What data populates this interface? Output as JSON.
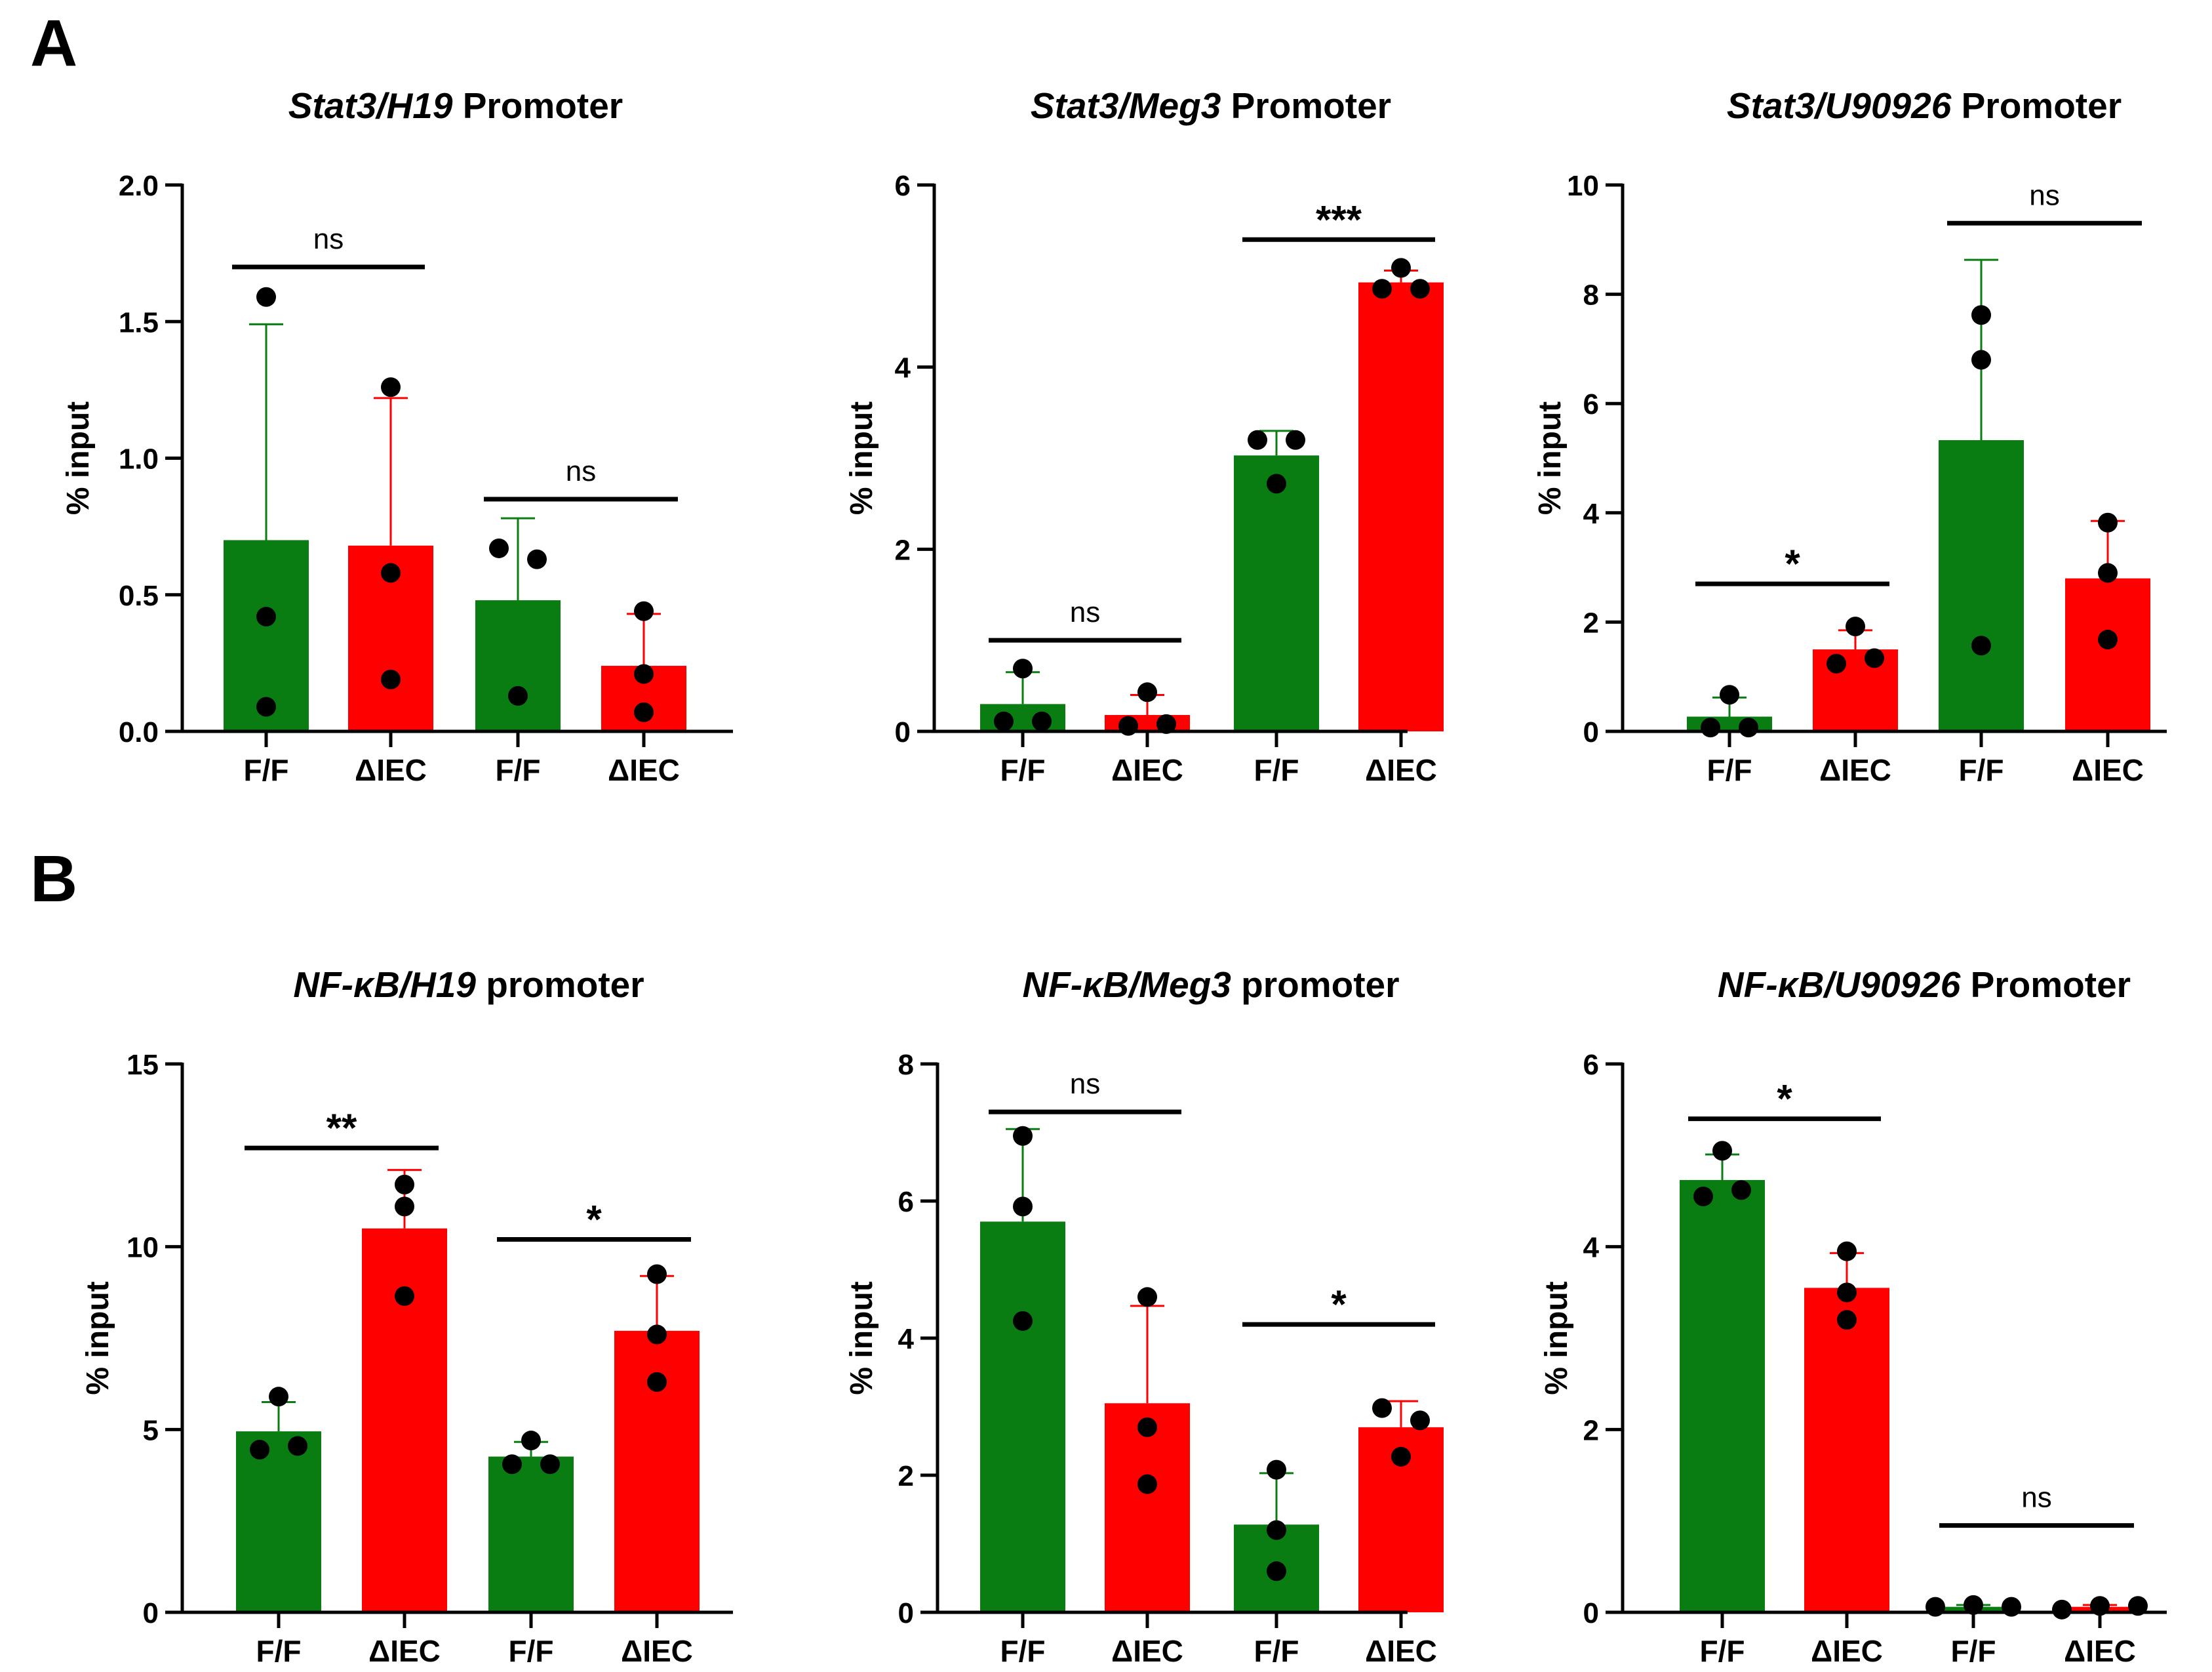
{
  "panels": [
    {
      "letter": "A"
    },
    {
      "letter": "B"
    }
  ],
  "chart_data": [
    {
      "type": "bar",
      "panel": "A",
      "title_italic": "Stat3/H19",
      "title_rest": " Promoter",
      "ylabel": "% input",
      "ylim": [
        0,
        2.0
      ],
      "yticks": [
        0.0,
        0.5,
        1.0,
        1.5,
        2.0
      ],
      "ytick_labels": [
        "0.0",
        "0.5",
        "1.0",
        "1.5",
        "2.0"
      ],
      "categories": [
        "F/F",
        "ΔIEC",
        "F/F",
        "ΔIEC"
      ],
      "colors": [
        "#0a7d12",
        "#ff0000",
        "#0a7d12",
        "#ff0000"
      ],
      "values": [
        0.7,
        0.68,
        0.48,
        0.24
      ],
      "errors": [
        0.79,
        0.54,
        0.3,
        0.19
      ],
      "points": [
        [
          1.59,
          0.42,
          0.09
        ],
        [
          1.26,
          0.58,
          0.19
        ],
        [
          0.67,
          0.63,
          0.13
        ],
        [
          0.44,
          0.21,
          0.07
        ]
      ],
      "significance": [
        {
          "from": 0,
          "to": 1,
          "label": "ns",
          "y": 1.7
        },
        {
          "from": 2,
          "to": 3,
          "label": "ns",
          "y": 0.85
        }
      ]
    },
    {
      "type": "bar",
      "panel": "A",
      "title_italic": "Stat3/Meg3",
      "title_rest": " Promoter",
      "ylabel": "% input",
      "ylim": [
        0,
        6
      ],
      "yticks": [
        0,
        2,
        4,
        6
      ],
      "ytick_labels": [
        "0",
        "2",
        "4",
        "6"
      ],
      "categories": [
        "F/F",
        "ΔIEC",
        "F/F",
        "ΔIEC"
      ],
      "colors": [
        "#0a7d12",
        "#ff0000",
        "#0a7d12",
        "#ff0000"
      ],
      "values": [
        0.3,
        0.18,
        3.03,
        4.93
      ],
      "errors": [
        0.35,
        0.22,
        0.27,
        0.13
      ],
      "points": [
        [
          0.69,
          0.11,
          0.11
        ],
        [
          0.43,
          0.06,
          0.08
        ],
        [
          3.2,
          3.2,
          2.72
        ],
        [
          5.09,
          4.86,
          4.86
        ]
      ],
      "significance": [
        {
          "from": 0,
          "to": 1,
          "label": "ns",
          "y": 1.0
        },
        {
          "from": 2,
          "to": 3,
          "label": "***",
          "y": 5.4
        }
      ]
    },
    {
      "type": "bar",
      "panel": "A",
      "title_italic": "Stat3/U90926",
      "title_rest": " Promoter",
      "ylabel": "% input",
      "ylim": [
        0,
        10
      ],
      "yticks": [
        0,
        2,
        4,
        6,
        8,
        10
      ],
      "ytick_labels": [
        "0",
        "2",
        "4",
        "6",
        "8",
        "10"
      ],
      "categories": [
        "F/F",
        "ΔIEC",
        "F/F",
        "ΔIEC"
      ],
      "colors": [
        "#0a7d12",
        "#ff0000",
        "#0a7d12",
        "#ff0000"
      ],
      "values": [
        0.27,
        1.5,
        5.33,
        2.8
      ],
      "errors": [
        0.35,
        0.35,
        3.3,
        1.05
      ],
      "points": [
        [
          0.67,
          0.07,
          0.07
        ],
        [
          1.92,
          1.24,
          1.34
        ],
        [
          7.62,
          6.8,
          1.57
        ],
        [
          3.82,
          2.9,
          1.68
        ]
      ],
      "significance": [
        {
          "from": 0,
          "to": 1,
          "label": "*",
          "y": 2.7
        },
        {
          "from": 2,
          "to": 3,
          "label": "ns",
          "y": 9.3
        }
      ]
    },
    {
      "type": "bar",
      "panel": "B",
      "title_italic": "NF-κB/H19",
      "title_rest": " promoter",
      "ylabel": "% input",
      "ylim": [
        0,
        15
      ],
      "yticks": [
        0,
        5,
        10,
        15
      ],
      "ytick_labels": [
        "0",
        "5",
        "10",
        "15"
      ],
      "categories": [
        "F/F",
        "ΔIEC",
        "F/F",
        "ΔIEC"
      ],
      "colors": [
        "#0a7d12",
        "#ff0000",
        "#0a7d12",
        "#ff0000"
      ],
      "values": [
        4.95,
        10.5,
        4.26,
        7.7
      ],
      "errors": [
        0.8,
        1.6,
        0.4,
        1.5
      ],
      "points": [
        [
          5.9,
          4.45,
          4.55
        ],
        [
          11.7,
          11.1,
          8.65
        ],
        [
          4.7,
          4.05,
          4.05
        ],
        [
          9.25,
          7.6,
          6.3
        ]
      ],
      "significance": [
        {
          "from": 0,
          "to": 1,
          "label": "**",
          "y": 12.7
        },
        {
          "from": 2,
          "to": 3,
          "label": "*",
          "y": 10.2
        }
      ]
    },
    {
      "type": "bar",
      "panel": "B",
      "title_italic": "NF-κB/Meg3",
      "title_rest": " promoter",
      "ylabel": "% input",
      "ylim": [
        0,
        8
      ],
      "yticks": [
        0,
        2,
        4,
        6,
        8
      ],
      "ytick_labels": [
        "0",
        "2",
        "4",
        "6",
        "8"
      ],
      "categories": [
        "F/F",
        "ΔIEC",
        "F/F",
        "ΔIEC"
      ],
      "colors": [
        "#0a7d12",
        "#ff0000",
        "#0a7d12",
        "#ff0000"
      ],
      "values": [
        5.7,
        3.05,
        1.28,
        2.7
      ],
      "errors": [
        1.35,
        1.42,
        0.75,
        0.38
      ],
      "points": [
        [
          6.95,
          5.92,
          4.25
        ],
        [
          4.6,
          2.7,
          1.87
        ],
        [
          2.08,
          1.2,
          0.6
        ],
        [
          2.98,
          2.8,
          2.27
        ]
      ],
      "significance": [
        {
          "from": 0,
          "to": 1,
          "label": "ns",
          "y": 7.3
        },
        {
          "from": 2,
          "to": 3,
          "label": "*",
          "y": 4.2
        }
      ]
    },
    {
      "type": "bar",
      "panel": "B",
      "title_italic": "NF-κB/U90926",
      "title_rest": " Promoter",
      "ylabel": "% input",
      "ylim": [
        0,
        6
      ],
      "yticks": [
        0,
        2,
        4,
        6
      ],
      "ytick_labels": [
        "0",
        "2",
        "4",
        "6"
      ],
      "categories": [
        "F/F",
        "ΔIEC",
        "F/F",
        "ΔIEC"
      ],
      "colors": [
        "#0a7d12",
        "#ff0000",
        "#0a7d12",
        "#ff0000"
      ],
      "values": [
        4.73,
        3.55,
        0.06,
        0.06
      ],
      "errors": [
        0.28,
        0.38,
        0.02,
        0.02
      ],
      "points": [
        [
          5.05,
          4.55,
          4.62
        ],
        [
          3.95,
          3.5,
          3.2
        ],
        [
          0.06,
          0.08,
          0.06
        ],
        [
          0.03,
          0.07,
          0.07
        ]
      ],
      "significance": [
        {
          "from": 0,
          "to": 1,
          "label": "*",
          "y": 5.4
        },
        {
          "from": 2,
          "to": 3,
          "label": "ns",
          "y": 0.95
        }
      ]
    }
  ]
}
